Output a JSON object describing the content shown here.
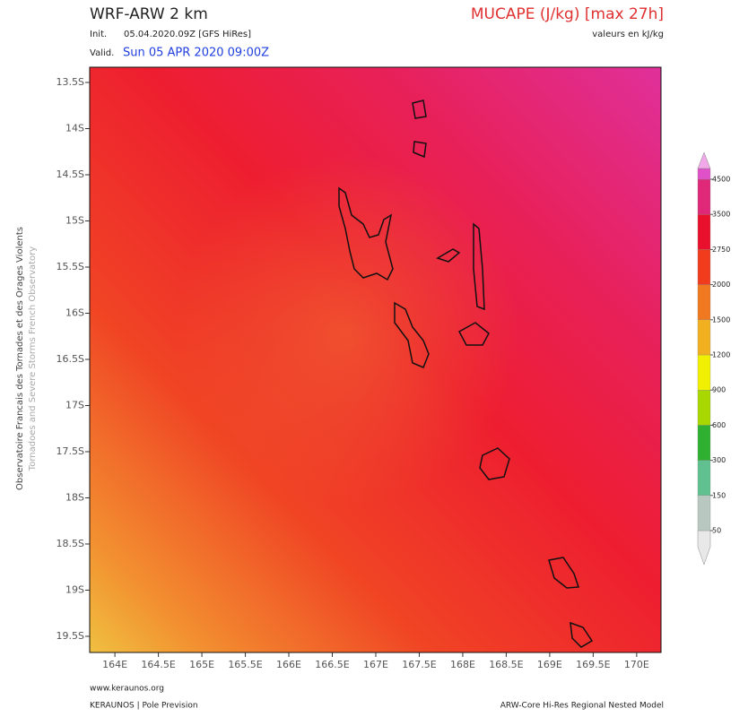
{
  "header": {
    "model": "WRF-ARW 2 km",
    "init_label": "Init.",
    "init": "05.04.2020.09Z [GFS HiRes]",
    "valid_label": "Valid.",
    "valid": "Sun 05 APR 2020 09:00Z",
    "parameter": "MUCAPE (J/kg) [max 27h]",
    "units_note": "valeurs en kJ/kg"
  },
  "side": {
    "line1": "Observatoire Francais des Tornades et des Orages Violents",
    "line2": "Tornadoes and Severe Storms French Observatory"
  },
  "footer": {
    "site": "www.keraunos.org",
    "org": "KERAUNOS | Pole Prevision",
    "model": "ARW-Core Hi-Res Regional Nested Model"
  },
  "map": {
    "xlim": [
      163.71,
      170.28
    ],
    "ylim": [
      -19.675,
      -13.335
    ],
    "xticks": [
      {
        "value": 164,
        "label": "164E"
      },
      {
        "value": 164.5,
        "label": "164.5E"
      },
      {
        "value": 165,
        "label": "165E"
      },
      {
        "value": 165.5,
        "label": "165.5E"
      },
      {
        "value": 166,
        "label": "166E"
      },
      {
        "value": 166.5,
        "label": "166.5E"
      },
      {
        "value": 167,
        "label": "167E"
      },
      {
        "value": 167.5,
        "label": "167.5E"
      },
      {
        "value": 168,
        "label": "168E"
      },
      {
        "value": 168.5,
        "label": "168.5E"
      },
      {
        "value": 169,
        "label": "169E"
      },
      {
        "value": 169.5,
        "label": "169.5E"
      },
      {
        "value": 170,
        "label": "170E"
      }
    ],
    "yticks": [
      {
        "value": -13.5,
        "label": "13.5S"
      },
      {
        "value": -14,
        "label": "14S"
      },
      {
        "value": -14.5,
        "label": "14.5S"
      },
      {
        "value": -15,
        "label": "15S"
      },
      {
        "value": -15.5,
        "label": "15.5S"
      },
      {
        "value": -16,
        "label": "16S"
      },
      {
        "value": -16.5,
        "label": "16.5S"
      },
      {
        "value": -17,
        "label": "17S"
      },
      {
        "value": -17.5,
        "label": "17.5S"
      },
      {
        "value": -18,
        "label": "18S"
      },
      {
        "value": -18.5,
        "label": "18.5S"
      },
      {
        "value": -19,
        "label": "19S"
      },
      {
        "value": -19.5,
        "label": "19.5S"
      }
    ]
  },
  "colorbar": {
    "levels": [
      50,
      150,
      300,
      600,
      900,
      1200,
      1500,
      2000,
      2750,
      3500,
      4500
    ],
    "colors": [
      "#e8e8e8",
      "#b8c8c0",
      "#60c090",
      "#30b030",
      "#a8d800",
      "#f0f000",
      "#f0b020",
      "#f07820",
      "#f03c1c",
      "#e8102c",
      "#e02878",
      "#e050c8",
      "#f0a8e8"
    ]
  }
}
